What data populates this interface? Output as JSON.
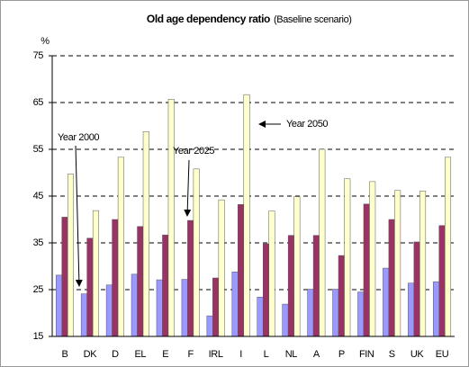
{
  "chart_data": {
    "type": "bar",
    "title": "Old age dependency ratio",
    "subtitle": "(Baseline scenario)",
    "y_label": "%",
    "categories": [
      "B",
      "DK",
      "D",
      "EL",
      "E",
      "F",
      "IRL",
      "I",
      "L",
      "NL",
      "A",
      "P",
      "FIN",
      "S",
      "UK",
      "EU"
    ],
    "series": [
      {
        "name": "Year 2000",
        "color": "#9999ff",
        "values": [
          28.1,
          24.1,
          26.0,
          28.3,
          27.1,
          27.2,
          19.4,
          28.8,
          23.4,
          21.9,
          25.1,
          25.1,
          24.5,
          29.6,
          26.4,
          26.7
        ]
      },
      {
        "name": "Year 2025",
        "color": "#993366",
        "values": [
          40.5,
          36.0,
          40.0,
          38.5,
          36.7,
          39.8,
          27.5,
          43.2,
          34.8,
          36.6,
          36.6,
          32.3,
          43.3,
          40.0,
          35.2,
          38.7
        ]
      },
      {
        "name": "Year 2050",
        "color": "#ffffcc",
        "values": [
          49.7,
          41.9,
          53.3,
          58.8,
          65.7,
          50.8,
          44.2,
          66.7,
          41.8,
          44.9,
          55.0,
          48.7,
          48.1,
          46.2,
          46.1,
          53.3
        ]
      }
    ],
    "ylim": [
      15,
      75
    ],
    "yticks": [
      15,
      25,
      35,
      45,
      55,
      65,
      75
    ],
    "grid": true
  }
}
